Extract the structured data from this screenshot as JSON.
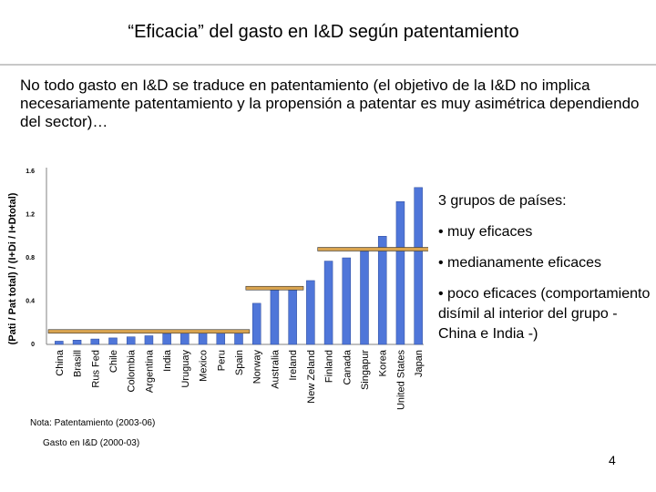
{
  "slide": {
    "title": "“Eficacia” del gasto en I&D según patentamiento",
    "intro": "No todo gasto en I&D se traduce en patentamiento (el objetivo de la I&D no implica necesariamente patentamiento y la propensión a patentar es muy asimétrica dependiendo del sector)…",
    "groups_header": "3 grupos de países:",
    "groups": [
      "• muy eficaces",
      "• medianamente eficaces",
      "• poco eficaces (comportamiento disímil al interior del grupo - China e India -)"
    ],
    "note_line1": "Nota: Patentamiento (2003-06)",
    "note_line2": "Gasto en I&D (2000-03)",
    "page_number": "4"
  },
  "chart_data": {
    "type": "bar",
    "ylabel": "(Pati / Pat total) / (I+Di / I+Dtotal)",
    "yticks": [
      "0",
      "0.4",
      "0.8",
      "1.2",
      "1.6"
    ],
    "ylim": [
      0,
      1.6
    ],
    "categories": [
      "China",
      "Brasill",
      "Rus Fed",
      "Chile",
      "Colombia",
      "Argentina",
      "India",
      "Uruguay",
      "Mexico",
      "Peru",
      "Spain",
      "Norway",
      "Australia",
      "Ireland",
      "New Zeland",
      "Finland",
      "Canada",
      "Singapur",
      "Korea",
      "United States",
      "Japan"
    ],
    "values": [
      0.03,
      0.04,
      0.05,
      0.06,
      0.07,
      0.08,
      0.1,
      0.11,
      0.11,
      0.12,
      0.13,
      0.38,
      0.52,
      0.53,
      0.59,
      0.77,
      0.8,
      0.86,
      1.0,
      1.32,
      1.45
    ],
    "bar_color": "#4f76d9",
    "group_lines": [
      {
        "from": 0,
        "to": 10,
        "value": 0.12
      },
      {
        "from": 11,
        "to": 13,
        "value": 0.52
      },
      {
        "from": 15,
        "to": 20,
        "value": 0.88
      }
    ],
    "group_line_color": "#d9a450"
  }
}
